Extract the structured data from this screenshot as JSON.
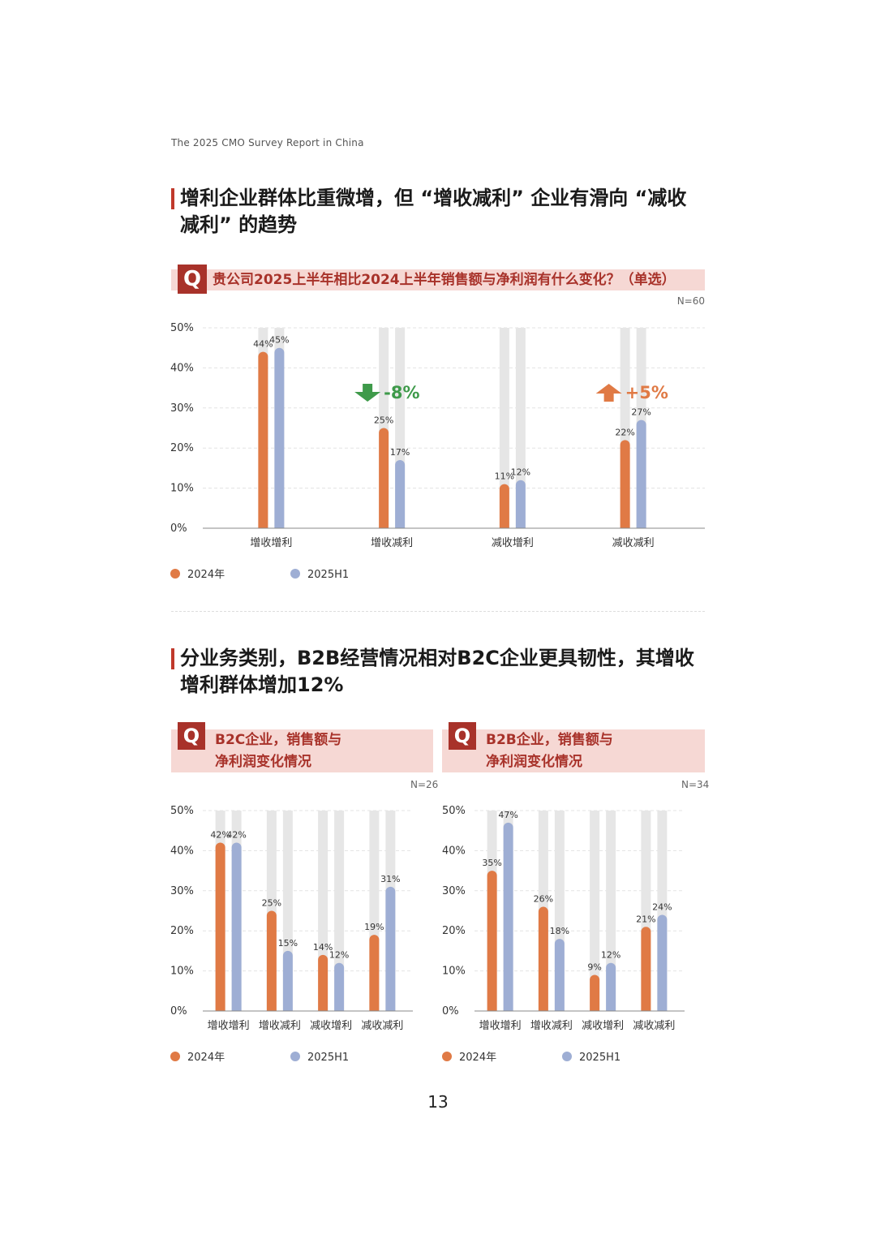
{
  "header": {
    "report_title": "The 2025 CMO Survey Report in China"
  },
  "section1": {
    "title_line1": "增利企业群体比重微增，但 “增收减利” 企业有滑向 “减收",
    "title_line2": "减利” 的趋势",
    "question": "贵公司2025上半年相比2024上半年销售额与净利润有什么变化？（单选）",
    "n": "N=60"
  },
  "section2": {
    "title_line1": "分业务类别，B2B经营情况相对B2C企业更具韧性，其增收",
    "title_line2": "增利群体增加12%",
    "b2c": {
      "title_line1": "B2C企业，销售额与",
      "title_line2": "净利润变化情况",
      "n": "N=26"
    },
    "b2b": {
      "title_line1": "B2B企业，销售额与",
      "title_line2": "净利润变化情况",
      "n": "N=34"
    }
  },
  "q_icon": "Q",
  "page_number": "13",
  "colors": {
    "series_2024": "#e07a45",
    "series_2025": "#9eaed4",
    "track": "#e6e6e6",
    "accent": "#a8322a",
    "banner": "#f6d8d4",
    "down": "#3e9a4a",
    "up": "#e07a45"
  },
  "chart_data": [
    {
      "type": "bar",
      "categories": [
        "增收增利",
        "增收减利",
        "减收增利",
        "减收减利"
      ],
      "series": [
        {
          "name": "2024年",
          "values": [
            44,
            25,
            11,
            22
          ],
          "labels": [
            "44%",
            "25%",
            "11%",
            "22%"
          ]
        },
        {
          "name": "2025H1",
          "values": [
            45,
            17,
            12,
            27
          ],
          "labels": [
            "45%",
            "17%",
            "12%",
            "27%"
          ]
        }
      ],
      "yticks": [
        "0%",
        "10%",
        "20%",
        "30%",
        "40%",
        "50%"
      ],
      "ylim": [
        0,
        50
      ],
      "annotations": [
        {
          "category": "增收减利",
          "text": "-8%",
          "direction": "down"
        },
        {
          "category": "减收减利",
          "text": "+5%",
          "direction": "up"
        }
      ],
      "legend": "bottom-left"
    },
    {
      "type": "bar",
      "categories": [
        "增收增利",
        "增收减利",
        "减收增利",
        "减收减利"
      ],
      "series": [
        {
          "name": "2024年",
          "values": [
            42,
            25,
            14,
            19
          ],
          "labels": [
            "42%",
            "25%",
            "14%",
            "19%"
          ]
        },
        {
          "name": "2025H1",
          "values": [
            42,
            15,
            12,
            31
          ],
          "labels": [
            "42%",
            "15%",
            "12%",
            "31%"
          ]
        }
      ],
      "yticks": [
        "0%",
        "10%",
        "20%",
        "30%",
        "40%",
        "50%"
      ],
      "ylim": [
        0,
        50
      ],
      "legend": "bottom-left"
    },
    {
      "type": "bar",
      "categories": [
        "增收增利",
        "增收减利",
        "减收增利",
        "减收减利"
      ],
      "series": [
        {
          "name": "2024年",
          "values": [
            35,
            26,
            9,
            21
          ],
          "labels": [
            "35%",
            "26%",
            "9%",
            "21%"
          ]
        },
        {
          "name": "2025H1",
          "values": [
            47,
            18,
            12,
            24
          ],
          "labels": [
            "47%",
            "18%",
            "12%",
            "24%"
          ]
        }
      ],
      "yticks": [
        "0%",
        "10%",
        "20%",
        "30%",
        "40%",
        "50%"
      ],
      "ylim": [
        0,
        50
      ],
      "legend": "bottom-left"
    }
  ]
}
